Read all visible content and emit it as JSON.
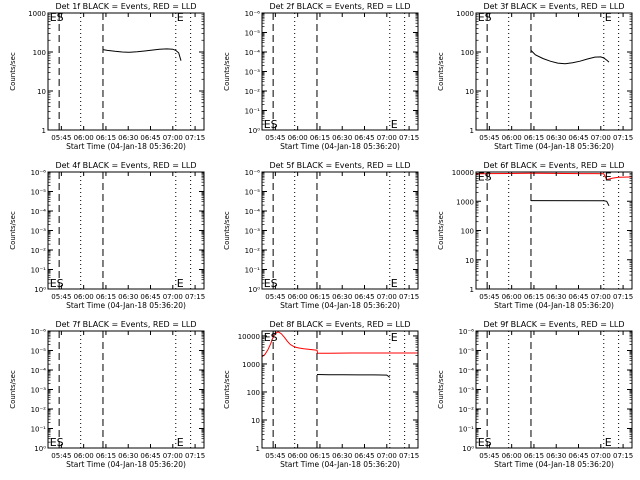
{
  "figure": {
    "xlabel": "Start Time (04-Jan-18 05:36:20)",
    "ylabel": "Counts/sec",
    "x_tick_labels": [
      "05:45",
      "06:00",
      "06:15",
      "06:30",
      "06:45",
      "07:00",
      "07:15"
    ],
    "colors": {
      "events": "#000000",
      "lld": "#ff0000",
      "frame": "#000000"
    }
  },
  "chart_data": [
    {
      "type": "line",
      "title": "Det 1f BLACK = Events, RED = LLD",
      "x_unit": "minutes after 05:36:20",
      "xlim": [
        0,
        105
      ],
      "y_scale": "log",
      "ylim": [
        1,
        1000
      ],
      "y_tick_labels": [
        "1",
        "10",
        "100",
        "1000"
      ],
      "vlines": {
        "dashed": [
          7.5,
          37
        ],
        "dotted": [
          22,
          86,
          96
        ]
      },
      "markers": [
        {
          "text": "ES",
          "x": 0.5,
          "y": 800
        },
        {
          "text": "E",
          "x": 86,
          "y": 800
        }
      ],
      "series": [
        {
          "color": "#000000",
          "x": [
            37,
            40,
            45,
            50,
            55,
            60,
            65,
            70,
            75,
            80,
            84,
            86,
            88,
            89.5
          ],
          "y": [
            115,
            110,
            104,
            100,
            98,
            101,
            106,
            112,
            117,
            120,
            118,
            110,
            95,
            60
          ]
        }
      ]
    },
    {
      "type": "line",
      "title": "Det 2f BLACK = Events, RED = LLD",
      "x_unit": "minutes after 05:36:20",
      "xlim": [
        0,
        105
      ],
      "y_scale": "log",
      "ylim": [
        1,
        1000000
      ],
      "y_tick_labels": [
        "10⁰",
        "10⁻¹",
        "10⁻²",
        "10⁻³",
        "10⁻⁴",
        "10⁻⁵",
        "10⁻⁶"
      ],
      "vlines": {
        "dashed": [
          7.5,
          37
        ],
        "dotted": [
          22,
          86,
          96
        ]
      },
      "markers": [
        {
          "text": "ES",
          "x": 0.5,
          "y": 2
        },
        {
          "text": "E",
          "x": 86,
          "y": 2
        }
      ],
      "series": []
    },
    {
      "type": "line",
      "title": "Det 3f BLACK = Events, RED = LLD",
      "x_unit": "minutes after 05:36:20",
      "xlim": [
        0,
        105
      ],
      "y_scale": "log",
      "ylim": [
        1,
        1000
      ],
      "y_tick_labels": [
        "1",
        "10",
        "100",
        "1000"
      ],
      "vlines": {
        "dashed": [
          7.5,
          37
        ],
        "dotted": [
          22,
          86,
          96
        ]
      },
      "markers": [
        {
          "text": "ES",
          "x": 0.5,
          "y": 800
        },
        {
          "text": "E",
          "x": 86,
          "y": 800
        }
      ],
      "series": [
        {
          "color": "#000000",
          "x": [
            37,
            40,
            45,
            50,
            55,
            60,
            65,
            70,
            75,
            80,
            84,
            86,
            88,
            89.5
          ],
          "y": [
            110,
            85,
            68,
            58,
            52,
            50,
            53,
            58,
            66,
            74,
            75,
            70,
            62,
            55
          ]
        }
      ]
    },
    {
      "type": "line",
      "title": "Det 4f BLACK = Events, RED = LLD",
      "x_unit": "minutes after 05:36:20",
      "xlim": [
        0,
        105
      ],
      "y_scale": "log",
      "ylim": [
        1,
        1000000
      ],
      "y_tick_labels": [
        "10⁰",
        "10⁻¹",
        "10⁻²",
        "10⁻³",
        "10⁻⁴",
        "10⁻⁵",
        "10⁻⁶"
      ],
      "vlines": {
        "dashed": [
          7.5,
          37
        ],
        "dotted": [
          22,
          86,
          96
        ]
      },
      "markers": [
        {
          "text": "ES",
          "x": 0.5,
          "y": 2
        },
        {
          "text": "E",
          "x": 86,
          "y": 2
        }
      ],
      "series": []
    },
    {
      "type": "line",
      "title": "Det 5f BLACK = Events, RED = LLD",
      "x_unit": "minutes after 05:36:20",
      "xlim": [
        0,
        105
      ],
      "y_scale": "log",
      "ylim": [
        1,
        1000000
      ],
      "y_tick_labels": [
        "10⁰",
        "10⁻¹",
        "10⁻²",
        "10⁻³",
        "10⁻⁴",
        "10⁻⁵",
        "10⁻⁶"
      ],
      "vlines": {
        "dashed": [
          7.5,
          37
        ],
        "dotted": [
          22,
          86,
          96
        ]
      },
      "markers": [
        {
          "text": "ES",
          "x": 0.5,
          "y": 2
        },
        {
          "text": "E",
          "x": 86,
          "y": 2
        }
      ],
      "series": []
    },
    {
      "type": "line",
      "title": "Det 6f BLACK = Events, RED = LLD",
      "x_unit": "minutes after 05:36:20",
      "xlim": [
        0,
        105
      ],
      "y_scale": "log",
      "ylim": [
        1,
        10000
      ],
      "y_tick_labels": [
        "1",
        "10",
        "100",
        "1000",
        "10000"
      ],
      "vlines": {
        "dashed": [
          7.5,
          37
        ],
        "dotted": [
          22,
          86,
          96
        ]
      },
      "markers": [
        {
          "text": "ES",
          "x": 0.5,
          "y": 7000
        },
        {
          "text": "E",
          "x": 86,
          "y": 7000
        }
      ],
      "series": [
        {
          "color": "#ff0000",
          "x": [
            0,
            2,
            4,
            6,
            7.5,
            37,
            50,
            60,
            70,
            80,
            86,
            88,
            92,
            96,
            100,
            105
          ],
          "y": [
            8500,
            8700,
            8800,
            8700,
            8800,
            9000,
            8950,
            8900,
            8850,
            8800,
            8700,
            5500,
            6200,
            6600,
            6700,
            6800
          ]
        },
        {
          "color": "#000000",
          "x": [
            37,
            86,
            88,
            89.5
          ],
          "y": [
            1050,
            1040,
            1000,
            700
          ]
        }
      ]
    },
    {
      "type": "line",
      "title": "Det 7f BLACK = Events, RED = LLD",
      "x_unit": "minutes after 05:36:20",
      "xlim": [
        0,
        105
      ],
      "y_scale": "log",
      "ylim": [
        1,
        1000000
      ],
      "y_tick_labels": [
        "10⁰",
        "10⁻¹",
        "10⁻²",
        "10⁻³",
        "10⁻⁴",
        "10⁻⁵",
        "10⁻⁶"
      ],
      "vlines": {
        "dashed": [
          7.5,
          37
        ],
        "dotted": [
          22,
          86,
          96
        ]
      },
      "markers": [
        {
          "text": "ES",
          "x": 0.5,
          "y": 2
        },
        {
          "text": "E",
          "x": 86,
          "y": 2
        }
      ],
      "series": []
    },
    {
      "type": "line",
      "title": "Det 8f BLACK = Events, RED = LLD",
      "x_unit": "minutes after 05:36:20",
      "xlim": [
        0,
        105
      ],
      "y_scale": "log",
      "ylim": [
        1,
        15000
      ],
      "y_tick_labels": [
        "1",
        "10",
        "100",
        "1000",
        "10000"
      ],
      "vlines": {
        "dashed": [
          7.5,
          37
        ],
        "dotted": [
          22,
          86,
          96
        ]
      },
      "markers": [
        {
          "text": "ES",
          "x": 0.5,
          "y": 9000
        },
        {
          "text": "E",
          "x": 86,
          "y": 9000
        }
      ],
      "series": [
        {
          "color": "#ff0000",
          "x": [
            0,
            2,
            4,
            6,
            7.5,
            9,
            11,
            13,
            15,
            17,
            19,
            21,
            23,
            25,
            28,
            32,
            37,
            37.5,
            45,
            60,
            80,
            100,
            105
          ],
          "y": [
            1800,
            2200,
            3200,
            5500,
            9000,
            12500,
            14000,
            12000,
            9000,
            6500,
            5000,
            4300,
            3900,
            3700,
            3500,
            3300,
            3100,
            2400,
            2400,
            2450,
            2450,
            2450,
            2450
          ]
        },
        {
          "color": "#000000",
          "x": [
            37,
            45,
            55,
            65,
            75,
            84,
            86
          ],
          "y": [
            420,
            415,
            410,
            408,
            405,
            400,
            330
          ]
        }
      ]
    },
    {
      "type": "line",
      "title": "Det 9f BLACK = Events, RED = LLD",
      "x_unit": "minutes after 05:36:20",
      "xlim": [
        0,
        105
      ],
      "y_scale": "log",
      "ylim": [
        1,
        1000000
      ],
      "y_tick_labels": [
        "10⁰",
        "10⁻¹",
        "10⁻²",
        "10⁻³",
        "10⁻⁴",
        "10⁻⁵",
        "10⁻⁶"
      ],
      "vlines": {
        "dashed": [
          7.5,
          37
        ],
        "dotted": [
          22,
          86,
          96
        ]
      },
      "markers": [
        {
          "text": "ES",
          "x": 0.5,
          "y": 2
        },
        {
          "text": "E",
          "x": 86,
          "y": 2
        }
      ],
      "series": []
    }
  ]
}
